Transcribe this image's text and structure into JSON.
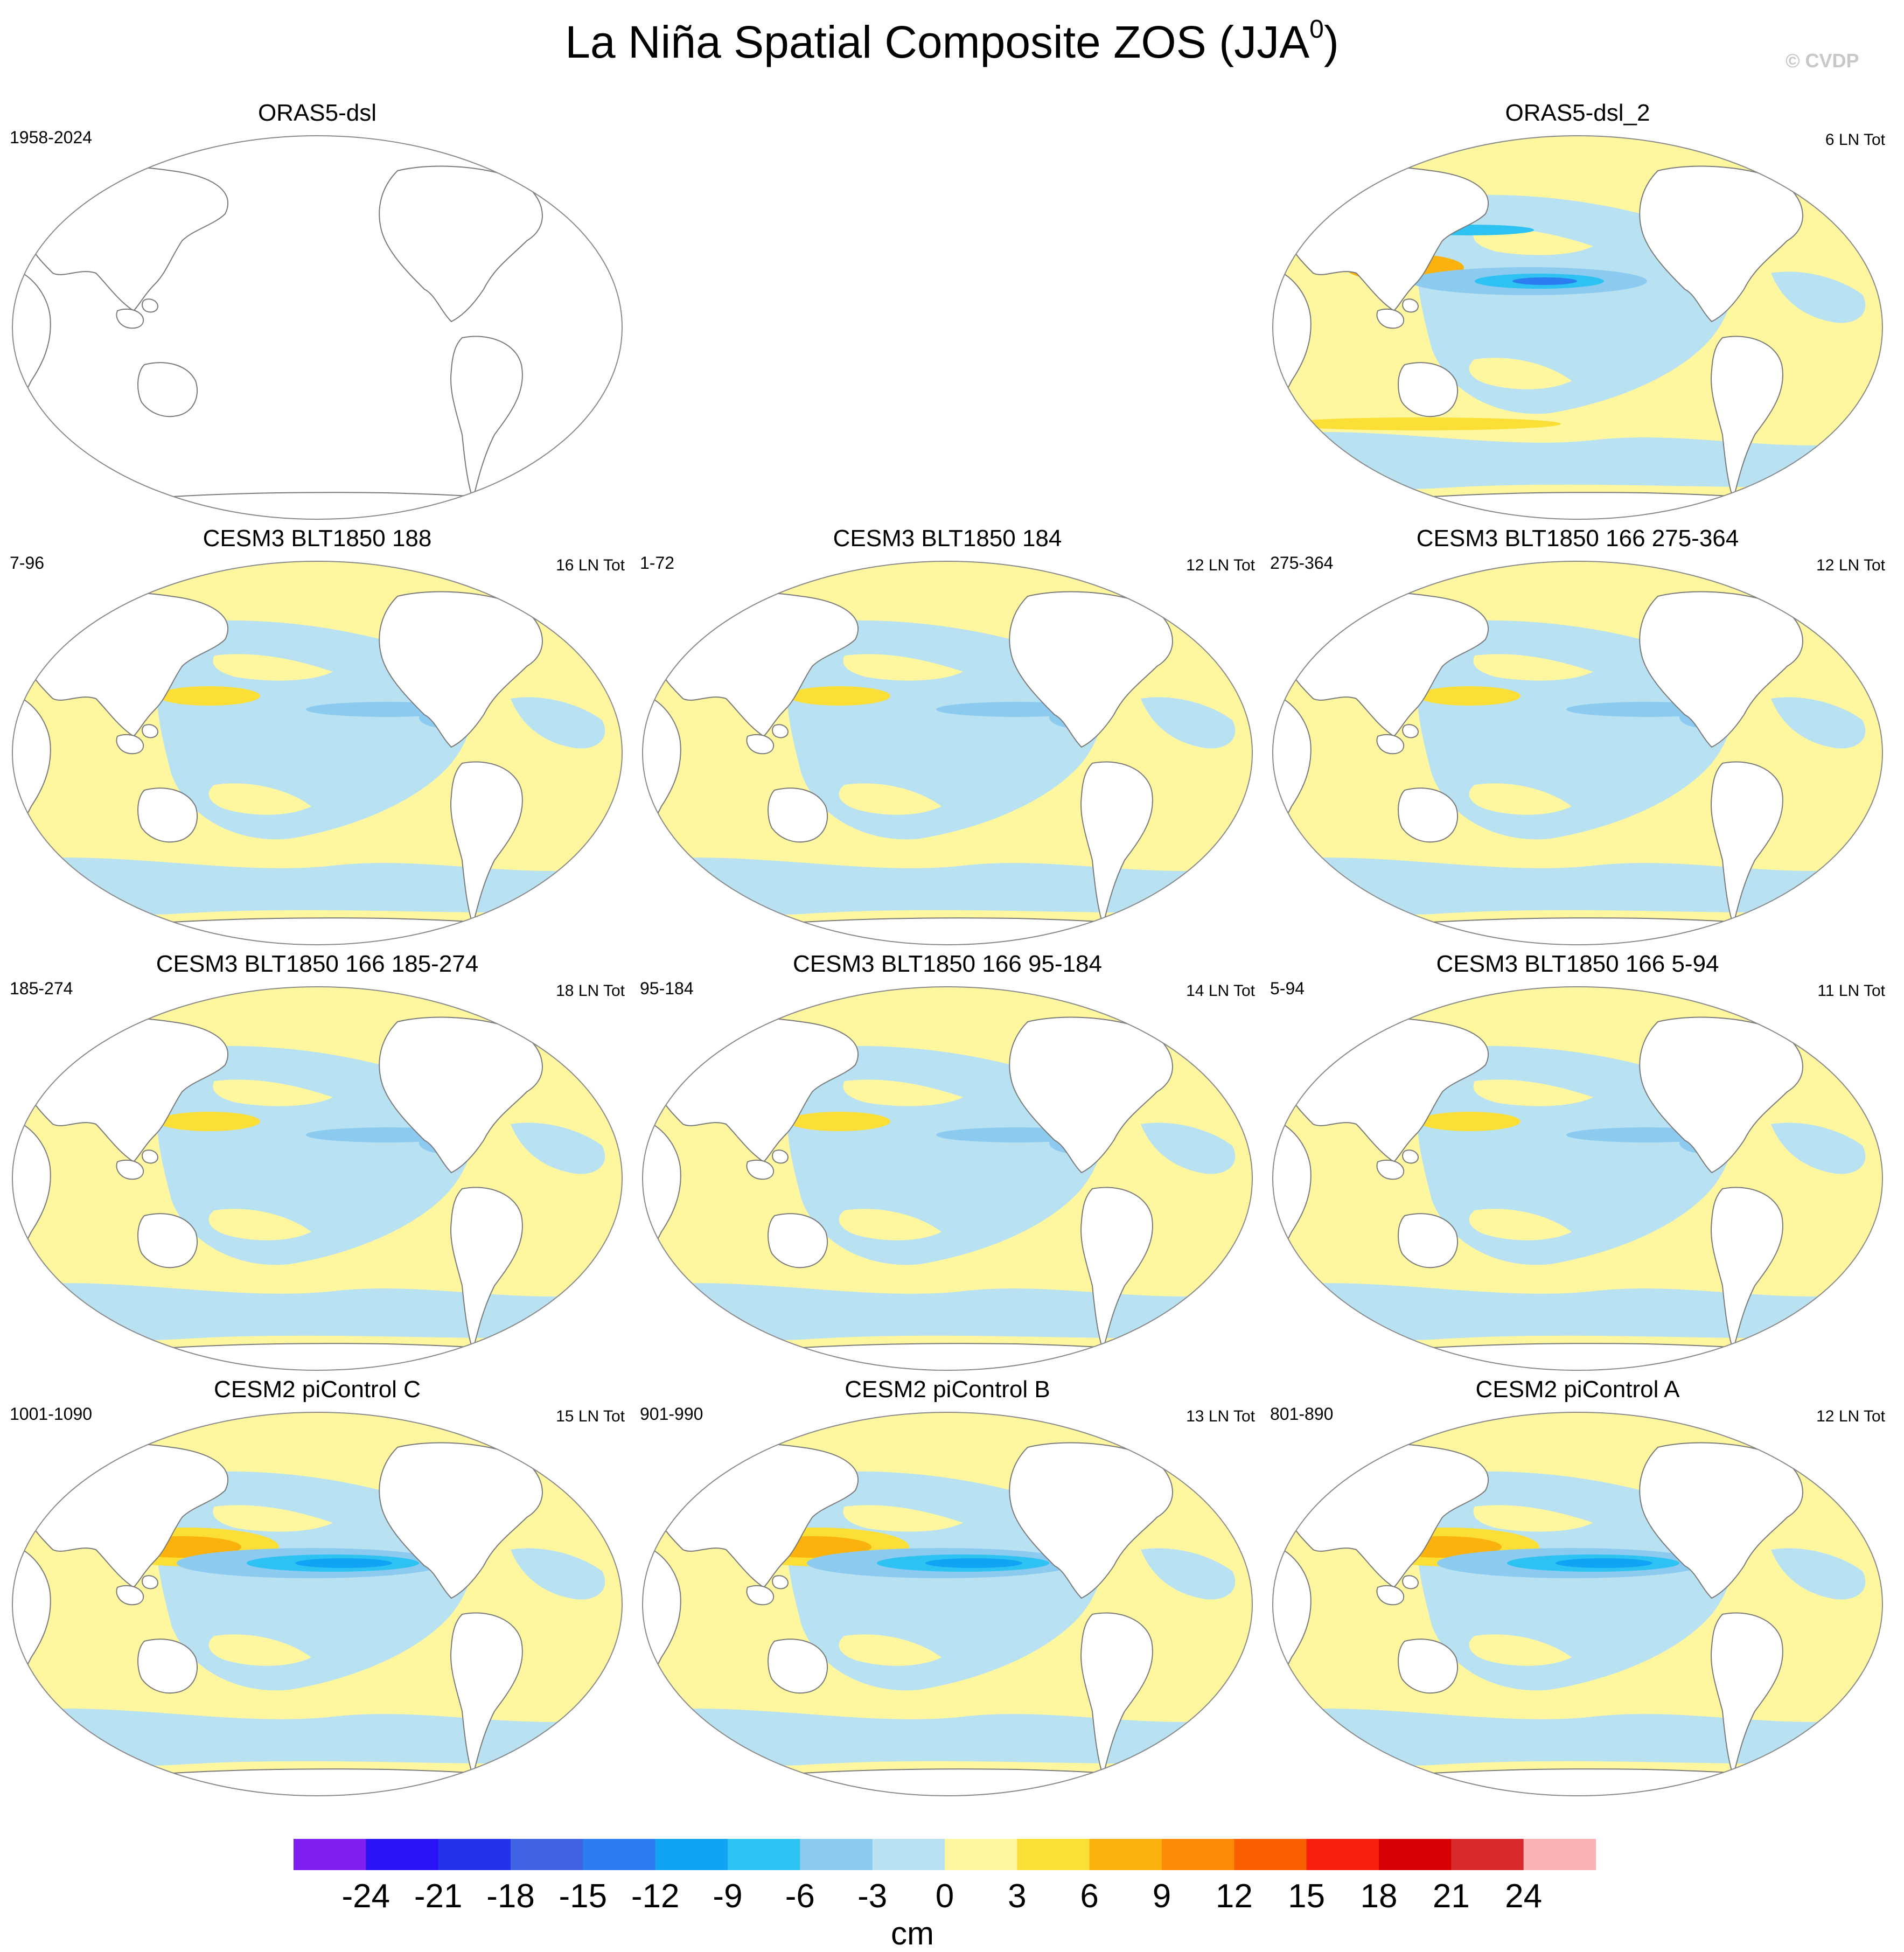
{
  "title_main": "La Niña Spatial Composite ZOS (JJA",
  "title_sup": "0",
  "title_end": ")",
  "watermark": "© CVDP",
  "panels": [
    {
      "name": "ORAS5-dsl",
      "period": "1958-2024",
      "count": "",
      "pattern": "empty"
    },
    {
      "name": "ORAS5-dsl_2",
      "period": "",
      "count": "6 LN Tot",
      "pattern": "obs"
    },
    {
      "name": "CESM3 BLT1850 188",
      "period": "7-96",
      "count": "16 LN Tot",
      "pattern": "weak"
    },
    {
      "name": "CESM3 BLT1850 184",
      "period": "1-72",
      "count": "12 LN Tot",
      "pattern": "weak"
    },
    {
      "name": "CESM3 BLT1850 166 275-364",
      "period": "275-364",
      "count": "12 LN Tot",
      "pattern": "weak"
    },
    {
      "name": "CESM3 BLT1850 166 185-274",
      "period": "185-274",
      "count": "18 LN Tot",
      "pattern": "weak"
    },
    {
      "name": "CESM3 BLT1850 166 95-184",
      "period": "95-184",
      "count": "14 LN Tot",
      "pattern": "weak"
    },
    {
      "name": "CESM3 BLT1850 166 5-94",
      "period": "5-94",
      "count": "11 LN Tot",
      "pattern": "weak"
    },
    {
      "name": "CESM2 piControl C",
      "period": "1001-1090",
      "count": "15 LN Tot",
      "pattern": "strong"
    },
    {
      "name": "CESM2 piControl B",
      "period": "901-990",
      "count": "13 LN Tot",
      "pattern": "strong"
    },
    {
      "name": "CESM2 piControl A",
      "period": "801-890",
      "count": "12 LN Tot",
      "pattern": "strong"
    }
  ],
  "colorbar": {
    "unit": "cm",
    "ticks": [
      "-24",
      "-21",
      "-18",
      "-15",
      "-12",
      "-9",
      "-6",
      "-3",
      "0",
      "3",
      "6",
      "9",
      "12",
      "15",
      "18",
      "21",
      "24"
    ],
    "colors": [
      "#7f1ff0",
      "#2a14f5",
      "#2233ea",
      "#3e62e0",
      "#2b7df0",
      "#11a4f5",
      "#2dc2f2",
      "#8ccbef",
      "#b8e1f2",
      "#fff7a0",
      "#fcdf36",
      "#fbb20c",
      "#fb8b06",
      "#fa5f00",
      "#f91e0b",
      "#d80006",
      "#d7292a",
      "#fdb2b4"
    ]
  },
  "chart_data": {
    "type": "heatmap",
    "title": "La Niña Spatial Composite ZOS (JJA0)",
    "variable": "ZOS composite",
    "units": "cm",
    "levels": [
      -24,
      -21,
      -18,
      -15,
      -12,
      -9,
      -6,
      -3,
      0,
      3,
      6,
      9,
      12,
      15,
      18,
      21,
      24
    ],
    "panels": [
      {
        "name": "ORAS5-dsl",
        "period": "1958-2024",
        "count": ""
      },
      {
        "name": "ORAS5-dsl_2",
        "period": "",
        "count": "6 LN Tot"
      },
      {
        "name": "CESM3 BLT1850 188",
        "period": "7-96",
        "count": "16 LN Tot"
      },
      {
        "name": "CESM3 BLT1850 184",
        "period": "1-72",
        "count": "12 LN Tot"
      },
      {
        "name": "CESM3 BLT1850 166 275-364",
        "period": "275-364",
        "count": "12 LN Tot"
      },
      {
        "name": "CESM3 BLT1850 166 185-274",
        "period": "185-274",
        "count": "18 LN Tot"
      },
      {
        "name": "CESM3 BLT1850 166 95-184",
        "period": "95-184",
        "count": "14 LN Tot"
      },
      {
        "name": "CESM3 BLT1850 166 5-94",
        "period": "5-94",
        "count": "11 LN Tot"
      },
      {
        "name": "CESM2 piControl C",
        "period": "1001-1090",
        "count": "15 LN Tot"
      },
      {
        "name": "CESM2 piControl B",
        "period": "901-990",
        "count": "13 LN Tot"
      },
      {
        "name": "CESM2 piControl A",
        "period": "801-890",
        "count": "12 LN Tot"
      }
    ]
  }
}
